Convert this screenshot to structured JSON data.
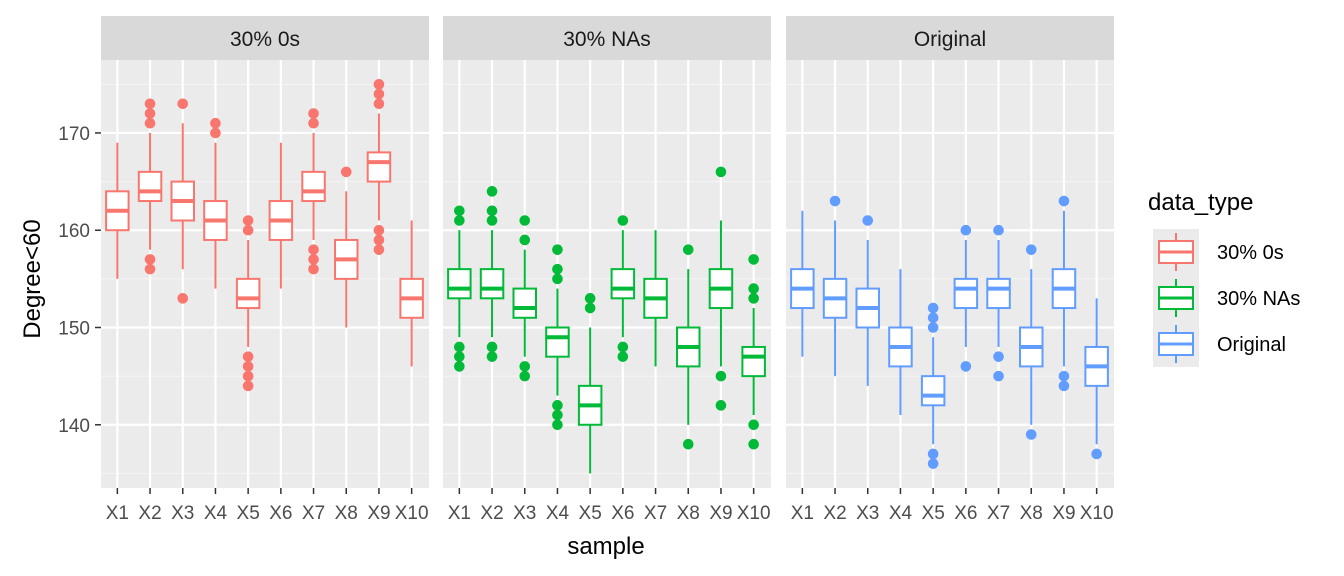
{
  "chart_data": {
    "type": "boxplot",
    "title": "",
    "xlabel": "sample",
    "ylabel": "Degree<60",
    "ylim": [
      133.5,
      177.5
    ],
    "yticks": [
      140,
      150,
      160,
      170
    ],
    "ytick_labels": [
      "140",
      "150",
      "160",
      "170"
    ],
    "grid": true,
    "categories": [
      "X1",
      "X2",
      "X3",
      "X4",
      "X5",
      "X6",
      "X7",
      "X8",
      "X9",
      "X10"
    ],
    "facets": [
      {
        "label": "30% 0s",
        "color": "#F8766D",
        "boxes": [
          {
            "min": 155,
            "q1": 160,
            "median": 162,
            "q3": 164,
            "max": 169,
            "outliers": []
          },
          {
            "min": 158,
            "q1": 163,
            "median": 164,
            "q3": 166,
            "max": 170,
            "outliers": [
              156,
              157,
              171,
              172,
              173
            ]
          },
          {
            "min": 156,
            "q1": 161,
            "median": 163,
            "q3": 165,
            "max": 171,
            "outliers": [
              153,
              173
            ]
          },
          {
            "min": 154,
            "q1": 159,
            "median": 161,
            "q3": 163,
            "max": 169,
            "outliers": [
              170,
              171
            ]
          },
          {
            "min": 148,
            "q1": 152,
            "median": 153,
            "q3": 155,
            "max": 159,
            "outliers": [
              144,
              145,
              146,
              147,
              160,
              161
            ]
          },
          {
            "min": 154,
            "q1": 159,
            "median": 161,
            "q3": 163,
            "max": 169,
            "outliers": []
          },
          {
            "min": 159,
            "q1": 163,
            "median": 164,
            "q3": 166,
            "max": 170,
            "outliers": [
              156,
              157,
              158,
              171,
              172
            ]
          },
          {
            "min": 150,
            "q1": 155,
            "median": 157,
            "q3": 159,
            "max": 164,
            "outliers": [
              166
            ]
          },
          {
            "min": 161,
            "q1": 165,
            "median": 167,
            "q3": 168,
            "max": 172,
            "outliers": [
              158,
              159,
              160,
              173,
              174,
              175
            ]
          },
          {
            "min": 146,
            "q1": 151,
            "median": 153,
            "q3": 155,
            "max": 161,
            "outliers": []
          }
        ]
      },
      {
        "label": "30% NAs",
        "color": "#00BA38",
        "boxes": [
          {
            "min": 149,
            "q1": 153,
            "median": 154,
            "q3": 156,
            "max": 160,
            "outliers": [
              146,
              147,
              148,
              161,
              162
            ]
          },
          {
            "min": 149,
            "q1": 153,
            "median": 154,
            "q3": 156,
            "max": 160,
            "outliers": [
              147,
              148,
              161,
              162,
              164
            ]
          },
          {
            "min": 147,
            "q1": 151,
            "median": 152,
            "q3": 154,
            "max": 158,
            "outliers": [
              145,
              146,
              159,
              161
            ]
          },
          {
            "min": 143,
            "q1": 147,
            "median": 149,
            "q3": 150,
            "max": 154,
            "outliers": [
              140,
              141,
              142,
              155,
              156,
              158
            ]
          },
          {
            "min": 135,
            "q1": 140,
            "median": 142,
            "q3": 144,
            "max": 150,
            "outliers": [
              152,
              153
            ]
          },
          {
            "min": 149,
            "q1": 153,
            "median": 154,
            "q3": 156,
            "max": 160,
            "outliers": [
              147,
              148,
              161
            ]
          },
          {
            "min": 146,
            "q1": 151,
            "median": 153,
            "q3": 155,
            "max": 160,
            "outliers": []
          },
          {
            "min": 140,
            "q1": 146,
            "median": 148,
            "q3": 150,
            "max": 156,
            "outliers": [
              138,
              158
            ]
          },
          {
            "min": 146,
            "q1": 152,
            "median": 154,
            "q3": 156,
            "max": 161,
            "outliers": [
              142,
              145,
              166
            ]
          },
          {
            "min": 141,
            "q1": 145,
            "median": 147,
            "q3": 148,
            "max": 152,
            "outliers": [
              138,
              140,
              153,
              154,
              157
            ]
          }
        ]
      },
      {
        "label": "Original",
        "color": "#619CFF",
        "boxes": [
          {
            "min": 147,
            "q1": 152,
            "median": 154,
            "q3": 156,
            "max": 162,
            "outliers": []
          },
          {
            "min": 145,
            "q1": 151,
            "median": 153,
            "q3": 155,
            "max": 161,
            "outliers": [
              163
            ]
          },
          {
            "min": 144,
            "q1": 150,
            "median": 152,
            "q3": 154,
            "max": 159,
            "outliers": [
              161
            ]
          },
          {
            "min": 141,
            "q1": 146,
            "median": 148,
            "q3": 150,
            "max": 156,
            "outliers": []
          },
          {
            "min": 138,
            "q1": 142,
            "median": 143,
            "q3": 145,
            "max": 149,
            "outliers": [
              136,
              137,
              150,
              151,
              152
            ]
          },
          {
            "min": 148,
            "q1": 152,
            "median": 154,
            "q3": 155,
            "max": 159,
            "outliers": [
              146,
              160
            ]
          },
          {
            "min": 148,
            "q1": 152,
            "median": 154,
            "q3": 155,
            "max": 159,
            "outliers": [
              145,
              147,
              160
            ]
          },
          {
            "min": 140,
            "q1": 146,
            "median": 148,
            "q3": 150,
            "max": 156,
            "outliers": [
              139,
              158
            ]
          },
          {
            "min": 146,
            "q1": 152,
            "median": 154,
            "q3": 156,
            "max": 162,
            "outliers": [
              144,
              145,
              163
            ]
          },
          {
            "min": 138,
            "q1": 144,
            "median": 146,
            "q3": 148,
            "max": 153,
            "outliers": [
              137
            ]
          }
        ]
      }
    ],
    "legend": {
      "title": "data_type",
      "position": "right",
      "entries": [
        {
          "label": "30% 0s",
          "color": "#F8766D"
        },
        {
          "label": "30% NAs",
          "color": "#00BA38"
        },
        {
          "label": "Original",
          "color": "#619CFF"
        }
      ]
    }
  }
}
